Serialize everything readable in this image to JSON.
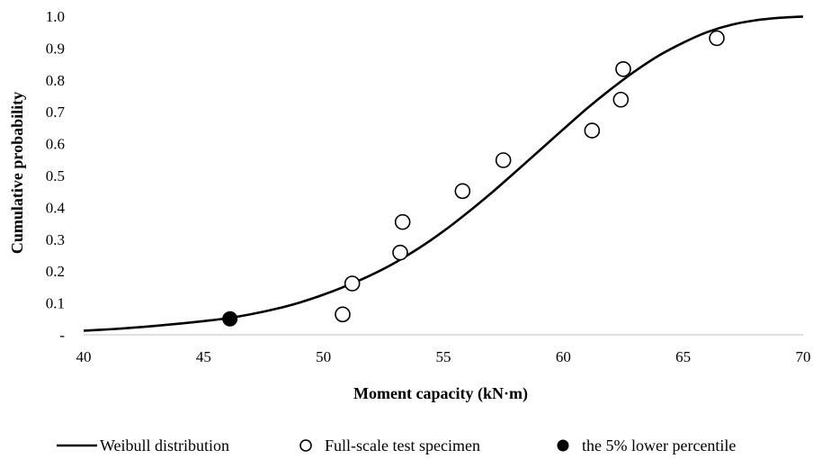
{
  "chart_data": {
    "type": "scatter",
    "title": "",
    "xlabel": "Moment capacity (kN·m)",
    "ylabel": "Cumulative probability",
    "xlim": [
      40,
      70
    ],
    "ylim": [
      0,
      1.0
    ],
    "x_ticks": [
      "40",
      "45",
      "50",
      "55",
      "60",
      "65",
      "70"
    ],
    "y_ticks": [
      "-",
      "0.1",
      "0.2",
      "0.3",
      "0.4",
      "0.5",
      "0.6",
      "0.7",
      "0.8",
      "0.9",
      "1.0"
    ],
    "grid": false,
    "legend_position": "bottom",
    "series": [
      {
        "name": "Weibull distribution",
        "kind": "line",
        "color": "#000000",
        "x": [
          40,
          41,
          42,
          43,
          44,
          45,
          46,
          47,
          48,
          49,
          50,
          51,
          52,
          53,
          54,
          55,
          56,
          57,
          58,
          59,
          60,
          61,
          62,
          63,
          64,
          65,
          66,
          67,
          68,
          69,
          70
        ],
        "y": [
          0.013,
          0.017,
          0.022,
          0.028,
          0.035,
          0.043,
          0.052,
          0.065,
          0.081,
          0.101,
          0.126,
          0.155,
          0.188,
          0.227,
          0.273,
          0.325,
          0.383,
          0.445,
          0.511,
          0.578,
          0.645,
          0.711,
          0.772,
          0.828,
          0.877,
          0.917,
          0.95,
          0.973,
          0.987,
          0.995,
          0.999
        ]
      },
      {
        "name": "Full-scale test specimen",
        "kind": "scatter",
        "marker": "open-circle",
        "color": "#000000",
        "x": [
          50.8,
          51.2,
          53.2,
          53.3,
          55.8,
          57.5,
          61.2,
          62.4,
          62.5,
          66.4
        ],
        "y": [
          0.064,
          0.161,
          0.258,
          0.354,
          0.451,
          0.548,
          0.641,
          0.738,
          0.834,
          0.931
        ]
      },
      {
        "name": "the 5% lower percentile",
        "kind": "scatter",
        "marker": "filled-circle",
        "color": "#000000",
        "x": [
          46.1
        ],
        "y": [
          0.05
        ]
      }
    ]
  }
}
